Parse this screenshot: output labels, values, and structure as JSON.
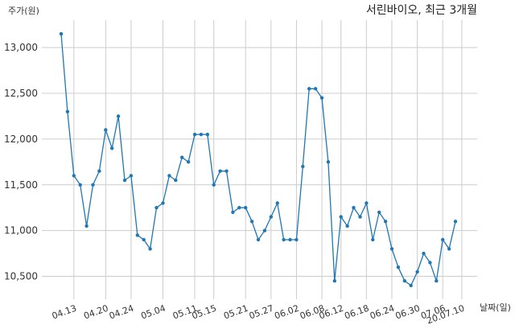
{
  "chart_data": {
    "type": "line",
    "title": "서린바이오, 최근 3개월",
    "ylabel": "주가(원)",
    "xlabel": "날짜(일)",
    "ylim": [
      10250,
      13300
    ],
    "grid": true,
    "line_color": "#1f77b4",
    "yticks": [
      10500,
      11000,
      11500,
      12000,
      12500,
      13000
    ],
    "ytick_labels": [
      "10,500",
      "11,000",
      "11,500",
      "12,000",
      "12,500",
      "13,000"
    ],
    "xtick_labels": [
      "04.13",
      "04.20",
      "04.24",
      "05.04",
      "05.11",
      "05.15",
      "05.21",
      "05.27",
      "06.02",
      "06.08",
      "06.12",
      "06.18",
      "06.24",
      "06.30",
      "07.06",
      "20.07.10"
    ],
    "xtick_index": [
      2,
      7,
      11,
      16,
      21,
      24,
      29,
      33,
      37,
      41,
      44,
      48,
      52,
      56,
      60,
      63
    ],
    "values": [
      13150,
      12300,
      11600,
      11500,
      11050,
      11500,
      11650,
      12100,
      11900,
      12250,
      11550,
      11600,
      10950,
      10900,
      10800,
      11250,
      11300,
      11600,
      11550,
      11800,
      11750,
      12050,
      12050,
      12050,
      11500,
      11650,
      11650,
      11200,
      11250,
      11250,
      11100,
      10900,
      11000,
      11150,
      11300,
      10900,
      10900,
      10900,
      11700,
      12550,
      12550,
      12450,
      11750,
      10450,
      11150,
      11050,
      11250,
      11150,
      11300,
      10900,
      11200,
      11100,
      10800,
      10600,
      10450,
      10400,
      10550,
      10750,
      10650,
      10450,
      10900,
      10800,
      11100
    ]
  }
}
